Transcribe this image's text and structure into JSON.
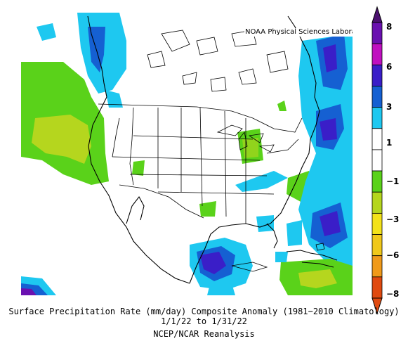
{
  "map": {
    "credit": "NOAA Physical Sciences Laboratory",
    "region": "North America",
    "colors": {
      "dark_purple": "#4b1070",
      "purple": "#6a10b0",
      "indigo": "#3a1ec8",
      "blue": "#1560d2",
      "light_blue": "#1ec8f0",
      "neutral": "#ffffff",
      "green": "#5ad21a",
      "yellow_green": "#b5d61e",
      "yellow": "#f3e21a",
      "orange": "#f09a1a",
      "red": "#e04a10"
    }
  },
  "colorbar": {
    "labels": [
      "8",
      "6",
      "3",
      "1",
      "−1",
      "−3",
      "−6",
      "−8"
    ],
    "colors": [
      "#6a10b0",
      "#c010c0",
      "#3a1ec8",
      "#1560d2",
      "#1ec8f0",
      "#ffffff",
      "#ffffff",
      "#5ad21a",
      "#b5d61e",
      "#f3e21a",
      "#f0c81a",
      "#f09a1a",
      "#e04a10"
    ]
  },
  "caption": {
    "line1": "Surface Precipitation Rate (mm/day) Composite Anomaly (1981−2010 Climatology)",
    "line2": "1/1/22  to 1/31/22",
    "line3": "NCEP/NCAR Reanalysis"
  }
}
